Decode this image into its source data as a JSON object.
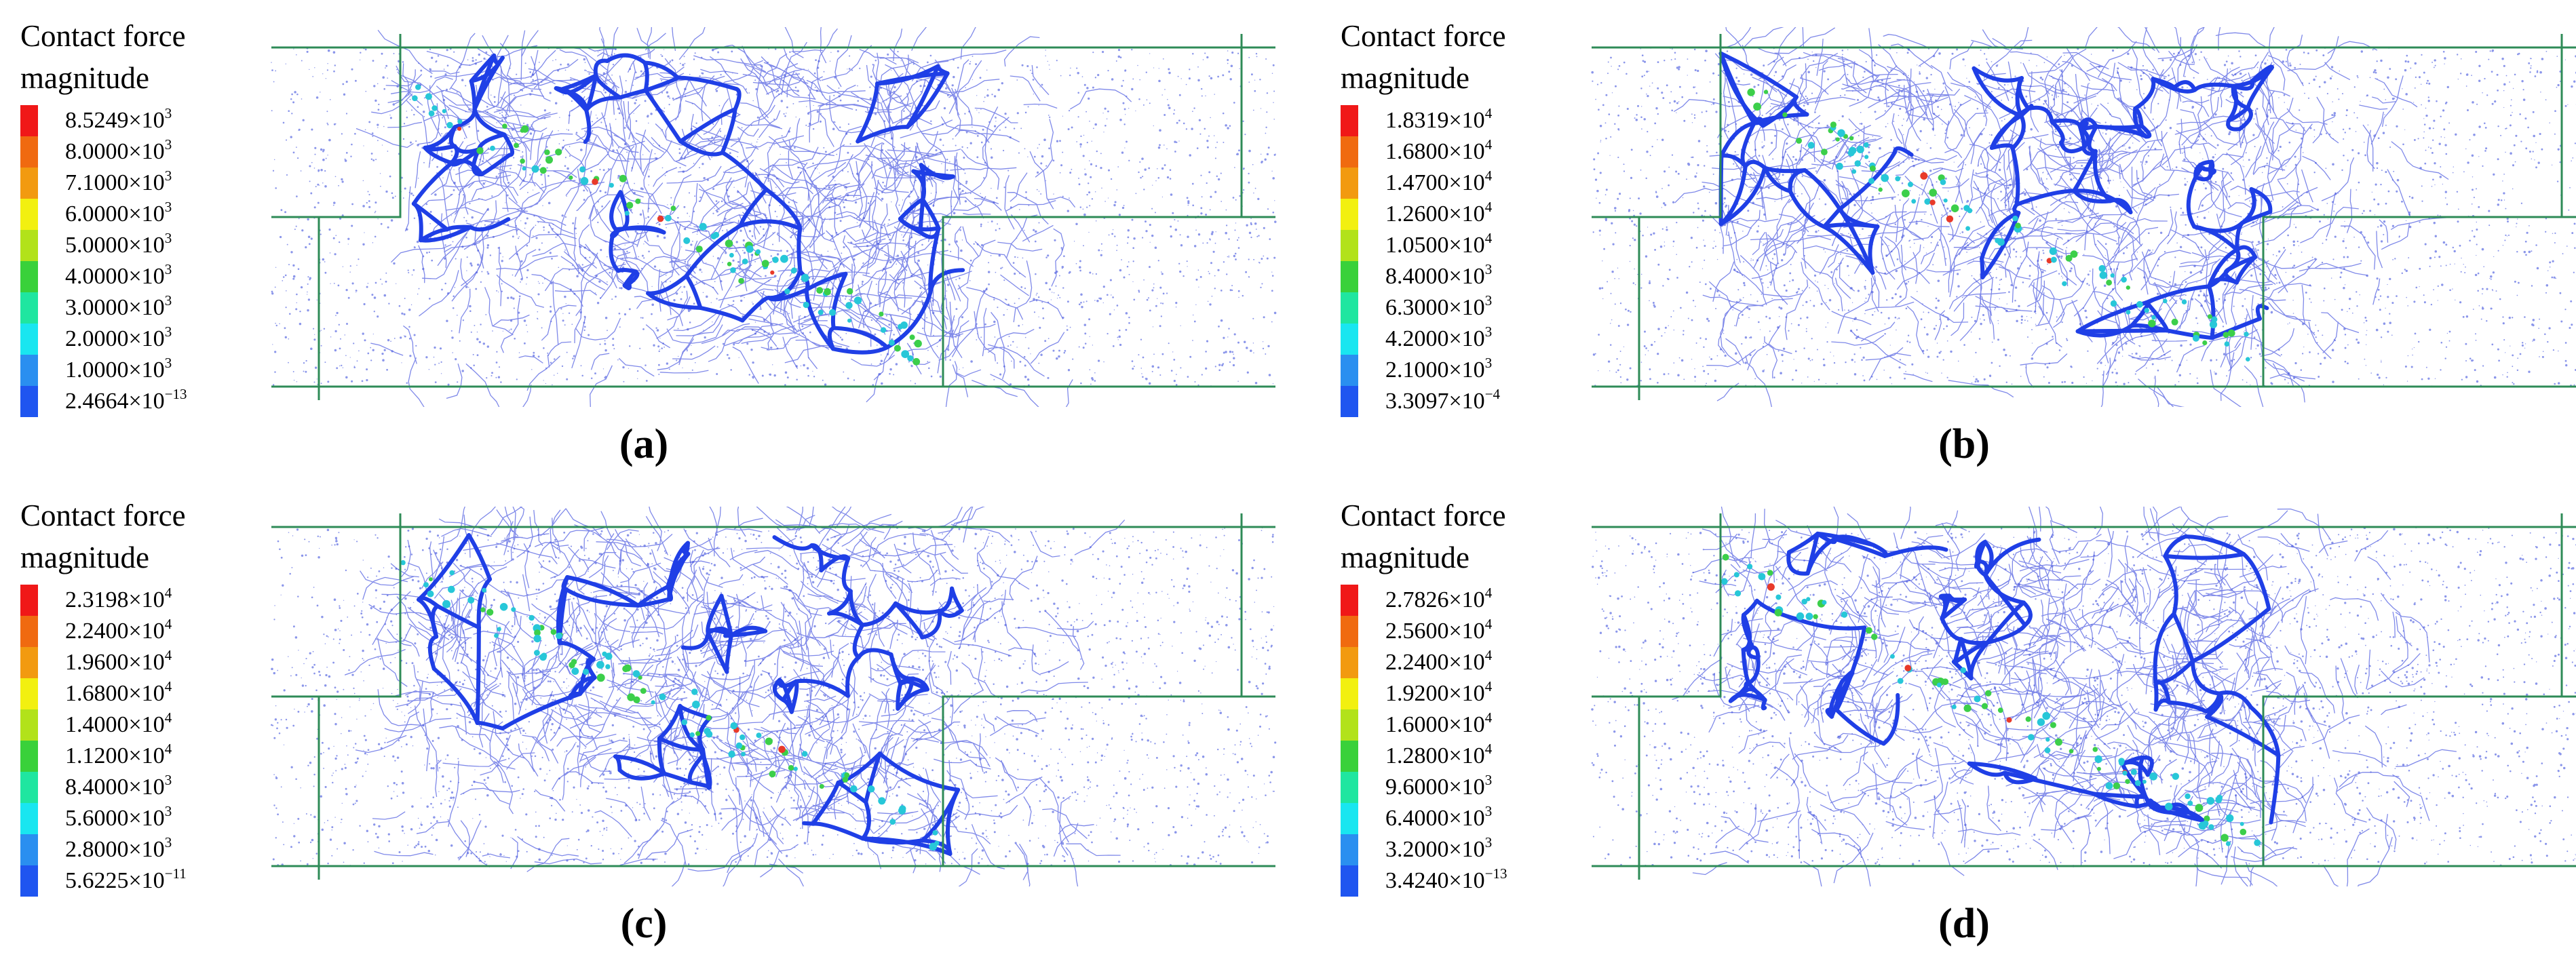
{
  "legend_title_lines": [
    "Contact force",
    "magnitude"
  ],
  "legend_colors": [
    "#f01818",
    "#f06a10",
    "#f29a10",
    "#f2f010",
    "#b2e21a",
    "#39d13a",
    "#1fe6a0",
    "#19e6f0",
    "#2a8ff0",
    "#1f55f0",
    "#1010f0"
  ],
  "network_colors": {
    "main_chain": "#1f3fe6",
    "fine_chain": "#4a58e0",
    "speckle": "#8b96ea",
    "accent_cyan": "#27c7d8",
    "accent_green": "#3ccf4a",
    "accent_red": "#e83a2a",
    "boundary": "#2e8b57"
  },
  "panels": [
    {
      "id": "a",
      "caption": "(a)",
      "legend": [
        {
          "mantissa": "8.5249×10",
          "exp": "3"
        },
        {
          "mantissa": "8.0000×10",
          "exp": "3"
        },
        {
          "mantissa": "7.1000×10",
          "exp": "3"
        },
        {
          "mantissa": "6.0000×10",
          "exp": "3"
        },
        {
          "mantissa": "5.0000×10",
          "exp": "3"
        },
        {
          "mantissa": "4.0000×10",
          "exp": "3"
        },
        {
          "mantissa": "3.0000×10",
          "exp": "3"
        },
        {
          "mantissa": "2.0000×10",
          "exp": "3"
        },
        {
          "mantissa": "1.0000×10",
          "exp": "3"
        },
        {
          "mantissa": "2.4664×10",
          "exp": "−13"
        }
      ]
    },
    {
      "id": "b",
      "caption": "(b)",
      "legend": [
        {
          "mantissa": "1.8319×10",
          "exp": "4"
        },
        {
          "mantissa": "1.6800×10",
          "exp": "4"
        },
        {
          "mantissa": "1.4700×10",
          "exp": "4"
        },
        {
          "mantissa": "1.2600×10",
          "exp": "4"
        },
        {
          "mantissa": "1.0500×10",
          "exp": "4"
        },
        {
          "mantissa": "8.4000×10",
          "exp": "3"
        },
        {
          "mantissa": "6.3000×10",
          "exp": "3"
        },
        {
          "mantissa": "4.2000×10",
          "exp": "3"
        },
        {
          "mantissa": "2.1000×10",
          "exp": "3"
        },
        {
          "mantissa": "3.3097×10",
          "exp": "−4"
        }
      ]
    },
    {
      "id": "c",
      "caption": "(c)",
      "legend": [
        {
          "mantissa": "2.3198×10",
          "exp": "4"
        },
        {
          "mantissa": "2.2400×10",
          "exp": "4"
        },
        {
          "mantissa": "1.9600×10",
          "exp": "4"
        },
        {
          "mantissa": "1.6800×10",
          "exp": "4"
        },
        {
          "mantissa": "1.4000×10",
          "exp": "4"
        },
        {
          "mantissa": "1.1200×10",
          "exp": "4"
        },
        {
          "mantissa": "8.4000×10",
          "exp": "3"
        },
        {
          "mantissa": "5.6000×10",
          "exp": "3"
        },
        {
          "mantissa": "2.8000×10",
          "exp": "3"
        },
        {
          "mantissa": "5.6225×10",
          "exp": "−11"
        }
      ]
    },
    {
      "id": "d",
      "caption": "(d)",
      "legend": [
        {
          "mantissa": "2.7826×10",
          "exp": "4"
        },
        {
          "mantissa": "2.5600×10",
          "exp": "4"
        },
        {
          "mantissa": "2.2400×10",
          "exp": "4"
        },
        {
          "mantissa": "1.9200×10",
          "exp": "4"
        },
        {
          "mantissa": "1.6000×10",
          "exp": "4"
        },
        {
          "mantissa": "1.2800×10",
          "exp": "4"
        },
        {
          "mantissa": "9.6000×10",
          "exp": "3"
        },
        {
          "mantissa": "6.4000×10",
          "exp": "3"
        },
        {
          "mantissa": "3.2000×10",
          "exp": "3"
        },
        {
          "mantissa": "3.4240×10",
          "exp": "−13"
        }
      ]
    }
  ]
}
